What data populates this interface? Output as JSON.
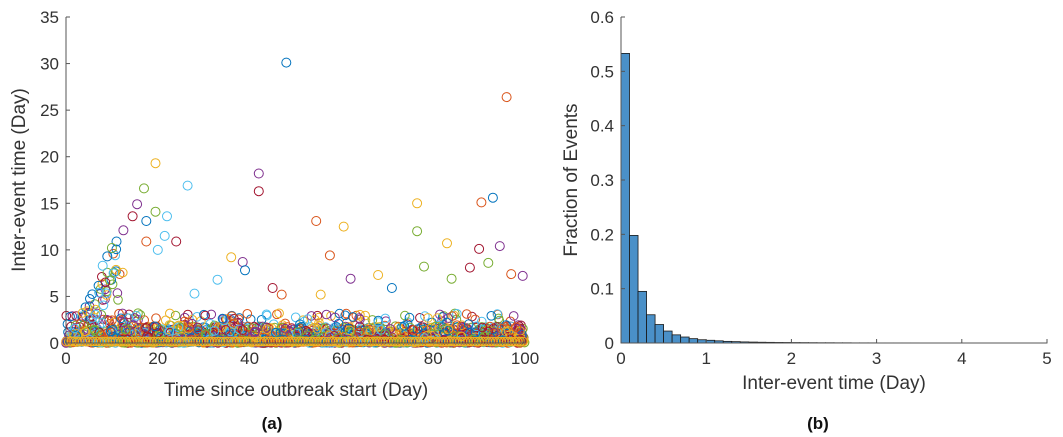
{
  "chart_data": [
    {
      "type": "scatter",
      "panel": "(a)",
      "title": "",
      "xlabel": "Time since outbreak start (Day)",
      "ylabel": "Inter-event time (Day)",
      "xlim": [
        0,
        100
      ],
      "ylim": [
        0,
        35
      ],
      "xticks": [
        0,
        20,
        40,
        60,
        80,
        100
      ],
      "yticks": [
        0,
        5,
        10,
        15,
        20,
        25,
        30,
        35
      ],
      "marker": "open circle",
      "grid": false,
      "series_colors": [
        "#0072BD",
        "#D95319",
        "#EDB120",
        "#7E2F8E",
        "#77AC30",
        "#4DBEEE",
        "#A2142F"
      ],
      "points": [
        {
          "x": 48,
          "y": 30.1
        },
        {
          "x": 96,
          "y": 26.4
        },
        {
          "x": 19.5,
          "y": 19.3
        },
        {
          "x": 42,
          "y": 18.2
        },
        {
          "x": 17,
          "y": 16.6
        },
        {
          "x": 26.5,
          "y": 16.9
        },
        {
          "x": 42,
          "y": 16.3
        },
        {
          "x": 93,
          "y": 15.6
        },
        {
          "x": 90.5,
          "y": 15.1
        },
        {
          "x": 76.5,
          "y": 15.0
        },
        {
          "x": 15.5,
          "y": 14.9
        },
        {
          "x": 19.5,
          "y": 14.1
        },
        {
          "x": 22,
          "y": 13.6
        },
        {
          "x": 14.5,
          "y": 13.6
        },
        {
          "x": 17.5,
          "y": 13.1
        },
        {
          "x": 54.5,
          "y": 13.1
        },
        {
          "x": 60.5,
          "y": 12.5
        },
        {
          "x": 12.5,
          "y": 12.1
        },
        {
          "x": 76.5,
          "y": 12.0
        },
        {
          "x": 21.5,
          "y": 11.5
        },
        {
          "x": 24,
          "y": 10.9
        },
        {
          "x": 11,
          "y": 10.9
        },
        {
          "x": 17.5,
          "y": 10.9
        },
        {
          "x": 83,
          "y": 10.7
        },
        {
          "x": 94.5,
          "y": 10.4
        },
        {
          "x": 10,
          "y": 10.2
        },
        {
          "x": 20,
          "y": 10.0
        },
        {
          "x": 90,
          "y": 10.1
        },
        {
          "x": 9,
          "y": 9.3
        },
        {
          "x": 57.5,
          "y": 9.4
        },
        {
          "x": 36,
          "y": 9.2
        },
        {
          "x": 38.5,
          "y": 8.7
        },
        {
          "x": 78,
          "y": 8.2
        },
        {
          "x": 8,
          "y": 8.3
        },
        {
          "x": 88,
          "y": 8.1
        },
        {
          "x": 39,
          "y": 7.8
        },
        {
          "x": 97,
          "y": 7.4
        },
        {
          "x": 68,
          "y": 7.3
        },
        {
          "x": 62,
          "y": 6.9
        },
        {
          "x": 84,
          "y": 6.9
        },
        {
          "x": 33,
          "y": 6.8
        },
        {
          "x": 45,
          "y": 5.9
        },
        {
          "x": 71,
          "y": 5.9
        },
        {
          "x": 47,
          "y": 5.2
        },
        {
          "x": 55.5,
          "y": 5.2
        },
        {
          "x": 99.5,
          "y": 7.2
        },
        {
          "x": 92,
          "y": 8.6
        },
        {
          "x": 28,
          "y": 5.3
        }
      ],
      "note_dense_band": "dense overlapping markers between y 0 and about 3 across all x, with a ramp up to about 12 for x below 13"
    },
    {
      "type": "bar",
      "panel": "(b)",
      "title": "",
      "xlabel": "Inter-event time (Day)",
      "ylabel": "Fraction of Events",
      "xlim": [
        0,
        5
      ],
      "ylim": [
        0,
        0.6
      ],
      "xticks": [
        0,
        1,
        2,
        3,
        4,
        5
      ],
      "yticks": [
        0,
        0.1,
        0.2,
        0.3,
        0.4,
        0.5,
        0.6
      ],
      "grid": false,
      "bar_color": "#4A90C8",
      "bin_width": 0.1,
      "bin_starts": [
        0.0,
        0.1,
        0.2,
        0.3,
        0.4,
        0.5,
        0.6,
        0.7,
        0.8,
        0.9,
        1.0,
        1.1,
        1.2,
        1.3,
        1.4,
        1.5,
        1.6,
        1.7,
        1.8,
        1.9,
        2.0,
        2.1,
        2.2,
        2.3,
        2.4,
        2.5,
        2.6,
        2.7,
        2.8,
        2.9,
        3.0,
        3.1,
        3.2,
        3.3,
        3.4,
        3.5,
        3.6,
        3.7,
        3.8,
        3.9,
        4.0,
        4.1,
        4.2,
        4.3,
        4.4,
        4.5,
        4.6,
        4.7,
        4.8,
        4.9
      ],
      "values": [
        0.533,
        0.198,
        0.095,
        0.052,
        0.034,
        0.022,
        0.015,
        0.011,
        0.008,
        0.006,
        0.005,
        0.004,
        0.003,
        0.0025,
        0.002,
        0.0017,
        0.0014,
        0.0012,
        0.001,
        0.0009,
        0.0008,
        0.0007,
        0.0006,
        0.0005,
        0.0005,
        0.0004,
        0.0004,
        0.0003,
        0.0003,
        0.0003,
        0.0002,
        0.0002,
        0.0002,
        0.0002,
        0.0002,
        0.0001,
        0.0001,
        0.0001,
        0.0001,
        0.0001,
        0.0001,
        0.0001,
        0.0001,
        0.0001,
        0.0001,
        0.0001,
        0.0001,
        0.0001,
        0.0001,
        0.0001
      ]
    }
  ],
  "captions": {
    "a": "(a)",
    "b": "(b)"
  }
}
